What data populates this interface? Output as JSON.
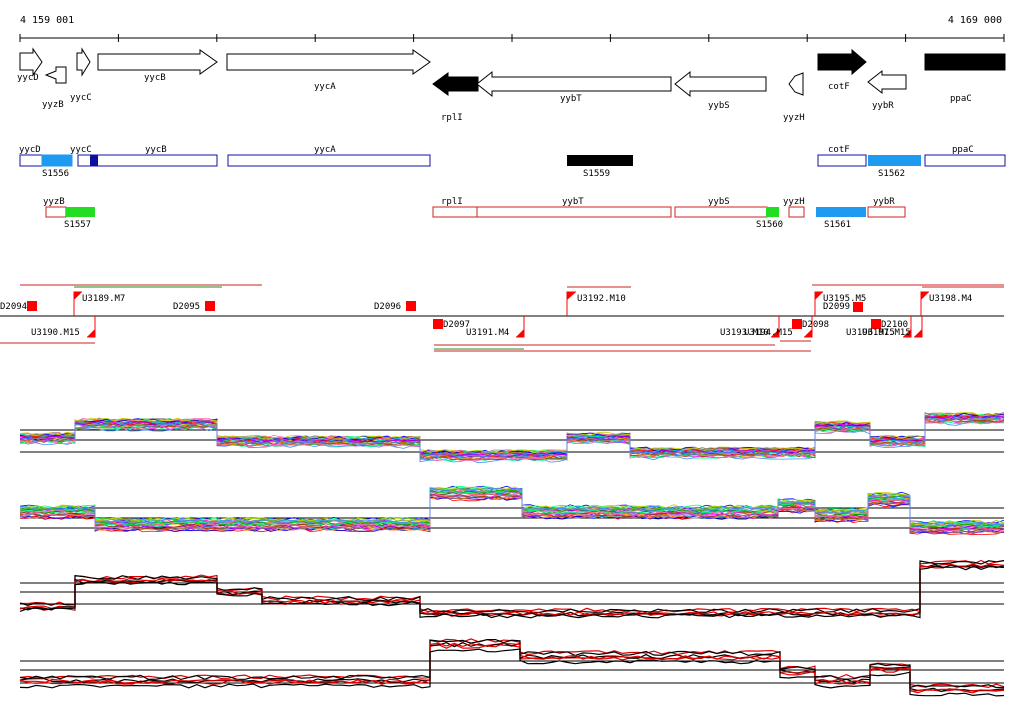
{
  "coords": {
    "start": "4 159 001",
    "end": "4 169 000"
  },
  "genes": [
    {
      "id": "yycD",
      "label": "yycD",
      "row": "upper",
      "filled": false,
      "strand": "+"
    },
    {
      "id": "yyzB",
      "label": "yyzB",
      "row": "lower",
      "filled": false,
      "strand": "-"
    },
    {
      "id": "yycC",
      "label": "yycC",
      "row": "lower",
      "filled": false,
      "strand": "+"
    },
    {
      "id": "yycB",
      "label": "yycB",
      "row": "upper",
      "filled": false,
      "strand": "+"
    },
    {
      "id": "yycA",
      "label": "yycA",
      "row": "mid",
      "filled": false,
      "strand": "+"
    },
    {
      "id": "rplI",
      "label": "rplI",
      "row": "bottom",
      "filled": true,
      "strand": "-"
    },
    {
      "id": "yybT",
      "label": "yybT",
      "row": "mid2",
      "filled": false,
      "strand": "-"
    },
    {
      "id": "yybS",
      "label": "yybS",
      "row": "mid2",
      "filled": false,
      "strand": "-"
    },
    {
      "id": "yyzH",
      "label": "yyzH",
      "row": "bottom",
      "filled": false,
      "strand": "-"
    },
    {
      "id": "cotF",
      "label": "cotF",
      "row": "upper",
      "filled": true,
      "strand": "+"
    },
    {
      "id": "yybR",
      "label": "yybR",
      "row": "mid2",
      "filled": false,
      "strand": "-"
    },
    {
      "id": "ppaC",
      "label": "ppaC",
      "row": "mid",
      "filled": true,
      "strand": "+"
    }
  ],
  "blue_track": [
    {
      "label": "yycD"
    },
    {
      "label": "yycC"
    },
    {
      "label": "yycB"
    },
    {
      "label": "yycA"
    },
    {
      "label": "cotF"
    },
    {
      "label": "ppaC"
    }
  ],
  "blue_fills": [
    {
      "label": "S1556",
      "color": "#1e9bf0"
    },
    {
      "label": "S1559",
      "color": "#000000"
    },
    {
      "label": "S1562",
      "color": "#1e9bf0"
    }
  ],
  "red_track": [
    {
      "label": "yyzB"
    },
    {
      "label": "rplI"
    },
    {
      "label": "yybT"
    },
    {
      "label": "yybS"
    },
    {
      "label": "yyzH"
    },
    {
      "label": "yybR"
    }
  ],
  "red_fills": [
    {
      "label": "S1557",
      "color": "#22dd22"
    },
    {
      "label": "S1560",
      "color": "#22dd22"
    },
    {
      "label": "S1561",
      "color": "#1e9bf0"
    }
  ],
  "tu_labels_top": [
    {
      "label": "D2094"
    },
    {
      "label": "U3189.M7"
    },
    {
      "label": "D2095"
    },
    {
      "label": "D2096"
    },
    {
      "label": "U3192.M10"
    },
    {
      "label": "U3195.M5"
    },
    {
      "label": "D2099"
    },
    {
      "label": "U3198.M4"
    }
  ],
  "tu_labels_bottom": [
    {
      "label": "U3190.M15"
    },
    {
      "label": "D2097"
    },
    {
      "label": "U3191.M4"
    },
    {
      "label": "U3193.M10"
    },
    {
      "label": "U3194.M15"
    },
    {
      "label": "D2098"
    },
    {
      "label": "U3196.M15"
    },
    {
      "label": "U3197.M15"
    },
    {
      "label": "D2100"
    }
  ],
  "colors": {
    "gene_outline": "#000000",
    "blue_track": "#1010a0",
    "red_track": "#cc2222",
    "marker": "#ff0000",
    "profile_red": "#dd0000",
    "profile_black": "#000000"
  }
}
